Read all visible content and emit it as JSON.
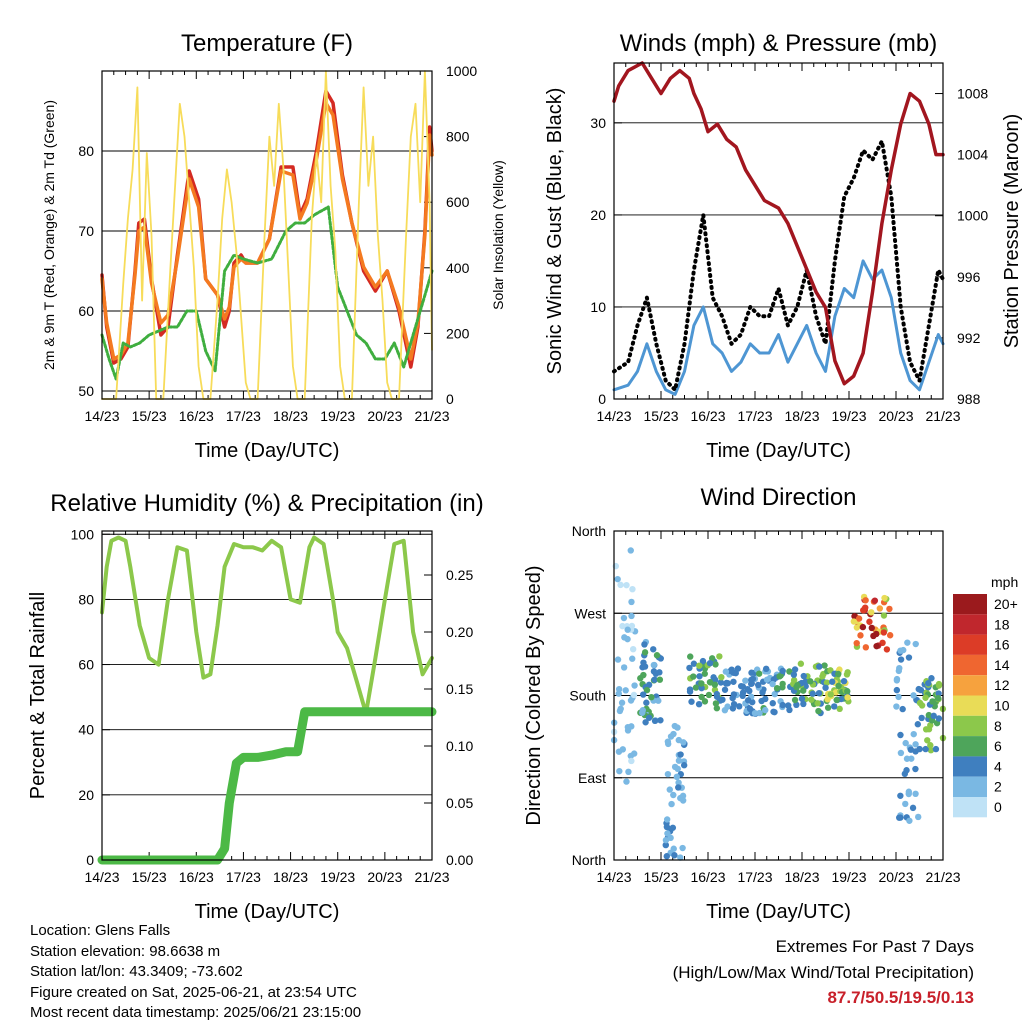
{
  "colors": {
    "red_2m": "#d42a22",
    "orange_9m": "#f47a20",
    "green_td": "#3fae3f",
    "yellow_solar": "#f7dc5a",
    "blue_wind": "#4e96d3",
    "black_gust": "#000000",
    "maroon_pressure": "#a2161f",
    "rh_green": "#8cc84b",
    "precip_green": "#4cb946"
  },
  "chart_data": [
    {
      "id": "temperature",
      "type": "line",
      "title": "Temperature (F)",
      "xlabel": "Time (Day/UTC)",
      "ylabel": "2m & 9m T (Red, Orange) & 2m Td (Green)",
      "y2label": "Solar Insolation (Yellow)",
      "x_tick_labels": [
        "14/23",
        "15/23",
        "16/23",
        "17/23",
        "18/23",
        "19/23",
        "20/23",
        "21/23"
      ],
      "xlim": [
        0,
        7
      ],
      "ylim": [
        49,
        90
      ],
      "yticks": [
        50,
        60,
        70,
        80
      ],
      "y2lim": [
        0,
        1000
      ],
      "y2ticks": [
        0,
        200,
        400,
        600,
        800,
        1000
      ],
      "grid": "horizontal",
      "series": [
        {
          "color_key": "red_2m",
          "axis": "left",
          "x": [
            0,
            0.1,
            0.25,
            0.4,
            0.55,
            0.7,
            0.78,
            0.9,
            1.05,
            1.25,
            1.4,
            1.6,
            1.85,
            2.05,
            2.2,
            2.45,
            2.6,
            2.7,
            2.8,
            2.95,
            3.05,
            3.3,
            3.55,
            3.8,
            4.05,
            4.2,
            4.35,
            4.55,
            4.75,
            4.9,
            5.1,
            5.3,
            5.55,
            5.8,
            6.05,
            6.3,
            6.55,
            6.7,
            6.85,
            6.95,
            7.0
          ],
          "y": [
            64.5,
            58,
            53.5,
            54,
            55.5,
            65,
            71,
            71.5,
            64,
            57,
            58,
            67,
            77.5,
            74,
            64,
            62,
            58,
            60,
            66,
            67,
            66,
            66,
            69,
            78,
            78,
            72,
            74,
            80,
            87.5,
            86,
            77,
            71,
            65,
            62.5,
            65,
            60,
            53,
            58,
            70,
            83,
            80
          ]
        },
        {
          "color_key": "orange_9m",
          "axis": "left",
          "x": [
            0,
            0.1,
            0.25,
            0.4,
            0.55,
            0.7,
            0.78,
            0.9,
            1.05,
            1.25,
            1.4,
            1.6,
            1.85,
            2.05,
            2.2,
            2.45,
            2.6,
            2.7,
            2.8,
            2.95,
            3.05,
            3.3,
            3.55,
            3.8,
            4.05,
            4.2,
            4.35,
            4.55,
            4.75,
            4.9,
            5.1,
            5.3,
            5.55,
            5.8,
            6.05,
            6.3,
            6.55,
            6.7,
            6.85,
            6.95,
            7.0
          ],
          "y": [
            64,
            58.5,
            54,
            54.5,
            56,
            64.5,
            70,
            70.5,
            63.5,
            58.5,
            59.5,
            66.5,
            76.5,
            73,
            64,
            62,
            59,
            60.5,
            65.5,
            66.5,
            66,
            66,
            69,
            77.5,
            77,
            71.5,
            73.5,
            79,
            86,
            84.5,
            76.5,
            71,
            65.5,
            63,
            65,
            60.5,
            54,
            58.5,
            69.5,
            82,
            79.5
          ]
        },
        {
          "color_key": "green_td",
          "axis": "left",
          "x": [
            0,
            0.15,
            0.3,
            0.45,
            0.6,
            0.8,
            1.0,
            1.2,
            1.4,
            1.6,
            1.8,
            2.0,
            2.2,
            2.4,
            2.6,
            2.8,
            3.0,
            3.3,
            3.6,
            3.9,
            4.1,
            4.3,
            4.5,
            4.8,
            5.0,
            5.2,
            5.4,
            5.6,
            5.8,
            6.0,
            6.2,
            6.4,
            6.6,
            6.8,
            7.0
          ],
          "y": [
            57,
            54,
            51.5,
            56,
            55.5,
            56,
            57,
            57.5,
            58,
            58,
            60,
            60,
            55,
            52.5,
            65,
            67,
            66.5,
            66,
            66.5,
            70,
            71,
            71,
            72,
            73,
            63,
            60,
            57,
            56,
            54,
            54,
            56,
            53,
            57,
            61,
            65
          ]
        },
        {
          "color_key": "yellow_solar",
          "axis": "right",
          "x": [
            0,
            0.3,
            0.45,
            0.55,
            0.65,
            0.75,
            0.85,
            0.95,
            1.05,
            1.15,
            1.3,
            1.45,
            1.55,
            1.65,
            1.75,
            1.85,
            1.95,
            2.05,
            2.15,
            2.3,
            2.45,
            2.55,
            2.65,
            2.75,
            2.85,
            2.95,
            3.05,
            3.15,
            3.3,
            3.45,
            3.55,
            3.65,
            3.75,
            3.85,
            3.95,
            4.05,
            4.15,
            4.3,
            4.45,
            4.55,
            4.65,
            4.75,
            4.85,
            4.95,
            5.05,
            5.15,
            5.3,
            5.45,
            5.55,
            5.65,
            5.75,
            5.85,
            5.95,
            6.05,
            6.15,
            6.3,
            6.45,
            6.55,
            6.65,
            6.75,
            6.85,
            6.95,
            7.0
          ],
          "y": [
            0,
            0,
            350,
            550,
            700,
            950,
            300,
            750,
            500,
            0,
            0,
            400,
            650,
            900,
            800,
            600,
            400,
            100,
            0,
            0,
            300,
            550,
            700,
            600,
            450,
            250,
            50,
            0,
            0,
            500,
            800,
            650,
            900,
            700,
            400,
            100,
            0,
            0,
            550,
            750,
            600,
            1000,
            650,
            450,
            100,
            0,
            0,
            600,
            950,
            650,
            800,
            500,
            300,
            50,
            0,
            0,
            500,
            800,
            900,
            600,
            1000,
            600,
            150
          ]
        }
      ]
    },
    {
      "id": "winds",
      "type": "line",
      "title": "Winds (mph) & Pressure (mb)",
      "xlabel": "Time (Day/UTC)",
      "ylabel": "Sonic Wind & Gust (Blue, Black)",
      "y2label": "Station Pressure (Maroon)",
      "x_tick_labels": [
        "14/23",
        "15/23",
        "16/23",
        "17/23",
        "18/23",
        "19/23",
        "20/23",
        "21/23"
      ],
      "xlim": [
        0,
        7
      ],
      "ylim": [
        0,
        36.5
      ],
      "yticks": [
        0,
        10,
        20,
        30
      ],
      "y2lim": [
        988,
        1010
      ],
      "y2ticks": [
        988,
        992,
        996,
        1000,
        1004,
        1008
      ],
      "grid": "horizontal",
      "series": [
        {
          "color_key": "blue_wind",
          "axis": "left",
          "x": [
            0,
            0.3,
            0.5,
            0.7,
            0.9,
            1.1,
            1.3,
            1.5,
            1.7,
            1.9,
            2.1,
            2.3,
            2.5,
            2.7,
            2.9,
            3.1,
            3.3,
            3.5,
            3.7,
            3.9,
            4.1,
            4.3,
            4.5,
            4.7,
            4.9,
            5.1,
            5.3,
            5.5,
            5.7,
            5.9,
            6.1,
            6.3,
            6.5,
            6.7,
            6.9,
            7.0
          ],
          "y": [
            1,
            1.5,
            3,
            6,
            3,
            1,
            0.5,
            3,
            8,
            10,
            6,
            5,
            3,
            4,
            6,
            5,
            5,
            7,
            4,
            6,
            8,
            5,
            3,
            9,
            12,
            11,
            15,
            13,
            14,
            11,
            5,
            2,
            1,
            4,
            7,
            6
          ]
        },
        {
          "color_key": "black_gust",
          "axis": "left",
          "x": [
            0,
            0.3,
            0.5,
            0.7,
            0.9,
            1.1,
            1.3,
            1.5,
            1.7,
            1.9,
            2.1,
            2.3,
            2.5,
            2.7,
            2.9,
            3.1,
            3.3,
            3.5,
            3.7,
            3.9,
            4.1,
            4.3,
            4.5,
            4.7,
            4.9,
            5.1,
            5.3,
            5.5,
            5.7,
            5.9,
            6.1,
            6.3,
            6.5,
            6.7,
            6.9,
            7.0
          ],
          "y": [
            3,
            4,
            8,
            11,
            6,
            2,
            1,
            6,
            14,
            20,
            11,
            9,
            6,
            7,
            10,
            9,
            9,
            12,
            8,
            10,
            14,
            9,
            6,
            15,
            22,
            24,
            27,
            26,
            28,
            22,
            10,
            4,
            2,
            8,
            14,
            13
          ]
        },
        {
          "color_key": "maroon_pressure",
          "axis": "right",
          "x": [
            0,
            0.1,
            0.3,
            0.6,
            0.8,
            1.0,
            1.2,
            1.4,
            1.6,
            1.7,
            1.85,
            2.0,
            2.2,
            2.4,
            2.6,
            2.8,
            3.0,
            3.2,
            3.5,
            3.7,
            3.9,
            4.1,
            4.3,
            4.5,
            4.7,
            4.9,
            5.1,
            5.3,
            5.5,
            5.7,
            5.9,
            6.1,
            6.3,
            6.5,
            6.7,
            6.85,
            7.0
          ],
          "y": [
            1007.5,
            1008.5,
            1009.5,
            1010,
            1009,
            1008,
            1009,
            1009.5,
            1009,
            1008,
            1007,
            1005.5,
            1006,
            1005,
            1004.5,
            1003,
            1002,
            1001,
            1000.5,
            999.5,
            998,
            996.5,
            995,
            994,
            990.5,
            989,
            989.5,
            991,
            995,
            999.5,
            1003,
            1006,
            1008,
            1007.5,
            1006,
            1004,
            1004
          ]
        }
      ]
    },
    {
      "id": "humidity",
      "type": "line",
      "title": "Relative Humidity (%) & Precipitation (in)",
      "xlabel": "Time (Day/UTC)",
      "ylabel": "Percent & Total Rainfall",
      "x_tick_labels": [
        "14/23",
        "15/23",
        "16/23",
        "17/23",
        "18/23",
        "19/23",
        "20/23",
        "21/23"
      ],
      "xlim": [
        0,
        7
      ],
      "ylim": [
        0,
        101
      ],
      "yticks": [
        0,
        20,
        40,
        60,
        80,
        100
      ],
      "y2lim": [
        0,
        0.2886
      ],
      "y2ticks": [
        0.0,
        0.05,
        0.1,
        0.15,
        0.2,
        0.25
      ],
      "y2tick_labels": [
        "0.00",
        "0.05",
        "0.10",
        "0.15",
        "0.20",
        "0.25"
      ],
      "grid": "horizontal",
      "series": [
        {
          "color_key": "rh_green",
          "axis": "left",
          "x": [
            0,
            0.1,
            0.2,
            0.35,
            0.5,
            0.6,
            0.8,
            1.0,
            1.2,
            1.4,
            1.6,
            1.8,
            2.0,
            2.15,
            2.3,
            2.45,
            2.6,
            2.8,
            3.0,
            3.2,
            3.4,
            3.6,
            3.8,
            4.0,
            4.2,
            4.4,
            4.5,
            4.7,
            4.9,
            5.0,
            5.2,
            5.4,
            5.6,
            5.8,
            6.0,
            6.2,
            6.4,
            6.6,
            6.8,
            7.0
          ],
          "y": [
            76,
            90,
            98,
            99,
            98,
            90,
            72,
            62,
            60,
            80,
            96,
            95,
            70,
            56,
            57,
            72,
            90,
            97,
            96,
            96,
            95,
            98,
            96,
            80,
            79,
            96,
            99,
            97,
            80,
            70,
            65,
            55,
            45,
            62,
            80,
            97,
            98,
            70,
            57,
            62
          ]
        },
        {
          "color_key": "precip_green",
          "axis": "right",
          "x": [
            0,
            2.45,
            2.6,
            2.7,
            2.85,
            3.0,
            3.3,
            3.6,
            3.9,
            4.0,
            4.15,
            4.3,
            4.6,
            5.0,
            5.5,
            6.0,
            6.5,
            7.0
          ],
          "y": [
            0,
            0,
            0.01,
            0.05,
            0.085,
            0.09,
            0.09,
            0.092,
            0.095,
            0.095,
            0.095,
            0.13,
            0.13,
            0.13,
            0.13,
            0.13,
            0.13,
            0.13
          ]
        }
      ]
    },
    {
      "id": "direction",
      "type": "scatter",
      "title": "Wind Direction",
      "xlabel": "Time (Day/UTC)",
      "ylabel": "Direction (Colored By Speed)",
      "x_tick_labels": [
        "14/23",
        "15/23",
        "16/23",
        "17/23",
        "18/23",
        "19/23",
        "20/23",
        "21/23"
      ],
      "xlim": [
        0,
        7
      ],
      "ylim": [
        0,
        360
      ],
      "ytick_labels": [
        "North",
        "East",
        "South",
        "West",
        "North"
      ],
      "yticks": [
        0,
        90,
        180,
        270,
        360
      ],
      "grid": "horizontal",
      "legend_title": "mph",
      "legend_labels": [
        "20+",
        "18",
        "16",
        "14",
        "12",
        "10",
        "8",
        "6",
        "4",
        "2",
        "0"
      ],
      "legend_colors": [
        "#9b1a1d",
        "#c0272d",
        "#dc3c27",
        "#ef6630",
        "#f6a23e",
        "#e9dc57",
        "#8cc84b",
        "#4ea55b",
        "#3f7fbf",
        "#7ab8e3",
        "#bfe2f6"
      ],
      "clusters": [
        {
          "x": [
            0,
            0.45
          ],
          "dir": [
            60,
            340
          ],
          "speed": [
            0,
            3
          ]
        },
        {
          "x": [
            0.5,
            1.0
          ],
          "dir": [
            150,
            240
          ],
          "speed": [
            2,
            6
          ]
        },
        {
          "x": [
            1.1,
            1.5
          ],
          "dir": [
            0,
            160
          ],
          "speed": [
            1,
            4
          ]
        },
        {
          "x": [
            1.6,
            2.3
          ],
          "dir": [
            165,
            225
          ],
          "speed": [
            3,
            8
          ]
        },
        {
          "x": [
            2.3,
            3.0
          ],
          "dir": [
            160,
            210
          ],
          "speed": [
            2,
            5
          ]
        },
        {
          "x": [
            3.0,
            3.8
          ],
          "dir": [
            160,
            215
          ],
          "speed": [
            2,
            6
          ]
        },
        {
          "x": [
            3.8,
            4.5
          ],
          "dir": [
            160,
            215
          ],
          "speed": [
            3,
            9
          ]
        },
        {
          "x": [
            4.5,
            5.0
          ],
          "dir": [
            165,
            210
          ],
          "speed": [
            4,
            11
          ]
        },
        {
          "x": [
            5.1,
            5.9
          ],
          "dir": [
            230,
            290
          ],
          "speed": [
            8,
            20
          ]
        },
        {
          "x": [
            6.0,
            6.5
          ],
          "dir": [
            40,
            240
          ],
          "speed": [
            1,
            5
          ]
        },
        {
          "x": [
            6.5,
            7.0
          ],
          "dir": [
            120,
            200
          ],
          "speed": [
            3,
            9
          ]
        }
      ]
    }
  ],
  "footer": {
    "location": "Location: Glens Falls",
    "elevation": "Station elevation: 98.6638 m",
    "latlon": "Station lat/lon: 43.3409; -73.602",
    "created": "Figure created on Sat, 2025-06-21, at 23:54 UTC",
    "recent": "Most recent data timestamp: 2025/06/21 23:15:00"
  },
  "extremes": {
    "title": "Extremes For Past 7 Days",
    "subtitle": "(High/Low/Max Wind/Total Precipitation)",
    "values": "87.7/50.5/19.5/0.13"
  }
}
